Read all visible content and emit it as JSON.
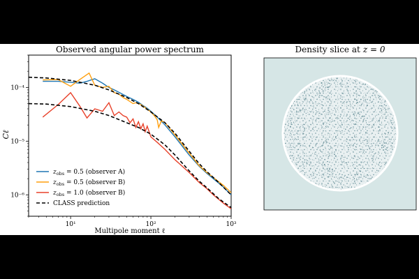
{
  "figure": {
    "left_title": "Observed angular power spectrum",
    "right_title": "Density slice at z = 0",
    "right_title_plain": "Density slice at",
    "right_title_math": "z = 0"
  },
  "chart_data": [
    {
      "type": "line",
      "title": "Observed angular power spectrum",
      "xlabel": "Multipole moment ℓ",
      "ylabel": "Cℓ",
      "xscale": "log",
      "yscale": "log",
      "xlim": [
        3,
        1000
      ],
      "ylim": [
        4e-07,
        0.0004
      ],
      "x_ticks": [
        10,
        100,
        1000
      ],
      "x_tick_labels": [
        "10¹",
        "10²",
        "10³"
      ],
      "y_ticks": [
        1e-06,
        1e-05,
        0.0001
      ],
      "y_tick_labels": [
        "10⁻⁶",
        "10⁻⁵",
        "10⁻⁴"
      ],
      "grid": false,
      "legend_position": "lower-left",
      "series": [
        {
          "name": "z_obs = 0.5 (observer A)",
          "color": "#1f77b4",
          "style": "solid",
          "points": [
            [
              4.5,
              0.00013
            ],
            [
              7,
              0.00013
            ],
            [
              10,
              0.000125
            ],
            [
              13,
              0.00012
            ],
            [
              16,
              0.00013
            ],
            [
              20,
              0.000145
            ],
            [
              25,
              0.00012
            ],
            [
              30,
              0.0001
            ],
            [
              35,
              9e-05
            ],
            [
              42,
              7.8e-05
            ],
            [
              50,
              6.8e-05
            ],
            [
              60,
              6e-05
            ],
            [
              70,
              5.3e-05
            ],
            [
              80,
              4.6e-05
            ],
            [
              90,
              4.1e-05
            ],
            [
              100,
              3.6e-05
            ],
            [
              120,
              2.8e-05
            ],
            [
              150,
              2e-05
            ],
            [
              200,
              1.2e-05
            ],
            [
              300,
              5.5e-06
            ],
            [
              400,
              3.4e-06
            ],
            [
              500,
              2.5e-06
            ],
            [
              600,
              2e-06
            ],
            [
              800,
              1.4e-06
            ],
            [
              1000,
              1e-06
            ]
          ]
        },
        {
          "name": "z_obs = 0.5 (observer B)",
          "color": "#ff9f0e",
          "style": "solid",
          "points": [
            [
              4.5,
              0.000138
            ],
            [
              7,
              0.00014
            ],
            [
              10,
              0.000105
            ],
            [
              13,
              0.00014
            ],
            [
              17,
              0.000185
            ],
            [
              20,
              0.00011
            ],
            [
              25,
              0.0001
            ],
            [
              30,
              0.000105
            ],
            [
              35,
              8e-05
            ],
            [
              40,
              7.5e-05
            ],
            [
              45,
              6.5e-05
            ],
            [
              50,
              6e-05
            ],
            [
              60,
              5e-05
            ],
            [
              65,
              5.2e-05
            ],
            [
              75,
              4.8e-05
            ],
            [
              85,
              4.2e-05
            ],
            [
              100,
              3.5e-05
            ],
            [
              110,
              3e-05
            ],
            [
              120,
              2.5e-05
            ],
            [
              125,
              1.8e-05
            ],
            [
              135,
              2.4e-05
            ],
            [
              150,
              2.2e-05
            ],
            [
              200,
              1.3e-05
            ],
            [
              300,
              6e-06
            ],
            [
              400,
              3.5e-06
            ],
            [
              500,
              2.6e-06
            ],
            [
              600,
              2.1e-06
            ],
            [
              800,
              1.5e-06
            ],
            [
              1000,
              1.1e-06
            ]
          ]
        },
        {
          "name": "z_obs = 1.0 (observer B)",
          "color": "#e8412a",
          "style": "solid",
          "points": [
            [
              4.5,
              2.8e-05
            ],
            [
              7,
              4.8e-05
            ],
            [
              10,
              8e-05
            ],
            [
              13,
              4.5e-05
            ],
            [
              16,
              2.7e-05
            ],
            [
              20,
              4e-05
            ],
            [
              25,
              3.6e-05
            ],
            [
              30,
              5.2e-05
            ],
            [
              35,
              3e-05
            ],
            [
              40,
              3.5e-05
            ],
            [
              45,
              3e-05
            ],
            [
              50,
              2.8e-05
            ],
            [
              55,
              2.2e-05
            ],
            [
              60,
              2.6e-05
            ],
            [
              65,
              1.8e-05
            ],
            [
              70,
              2.3e-05
            ],
            [
              75,
              1.7e-05
            ],
            [
              80,
              2.1e-05
            ],
            [
              85,
              1.5e-05
            ],
            [
              90,
              1.9e-05
            ],
            [
              100,
              1.2e-05
            ],
            [
              120,
              9.5e-06
            ],
            [
              150,
              7e-06
            ],
            [
              200,
              4.5e-06
            ],
            [
              300,
              2.6e-06
            ],
            [
              400,
              1.7e-06
            ],
            [
              500,
              1.3e-06
            ],
            [
              600,
              1e-06
            ],
            [
              800,
              7e-07
            ],
            [
              1000,
              5.5e-07
            ]
          ]
        },
        {
          "name": "CLASS prediction",
          "color": "#000000",
          "style": "dashed",
          "points": [
            [
              3,
              0.000155
            ],
            [
              5,
              0.00015
            ],
            [
              10,
              0.000135
            ],
            [
              20,
              0.00011
            ],
            [
              30,
              9e-05
            ],
            [
              50,
              6.5e-05
            ],
            [
              70,
              5e-05
            ],
            [
              100,
              3.5e-05
            ],
            [
              150,
              2.2e-05
            ],
            [
              200,
              1.4e-05
            ],
            [
              300,
              6.5e-06
            ],
            [
              400,
              3.8e-06
            ],
            [
              500,
              2.7e-06
            ],
            [
              700,
              1.7e-06
            ],
            [
              1000,
              1e-06
            ]
          ]
        },
        {
          "name": "",
          "color": "#000000",
          "style": "dashed",
          "points": [
            [
              3,
              5e-05
            ],
            [
              5,
              4.9e-05
            ],
            [
              10,
              4.4e-05
            ],
            [
              20,
              3.6e-05
            ],
            [
              30,
              3e-05
            ],
            [
              50,
              2.2e-05
            ],
            [
              70,
              1.8e-05
            ],
            [
              100,
              1.35e-05
            ],
            [
              150,
              8.5e-06
            ],
            [
              200,
              5.5e-06
            ],
            [
              300,
              2.8e-06
            ],
            [
              400,
              1.8e-06
            ],
            [
              500,
              1.35e-06
            ],
            [
              700,
              8.5e-07
            ],
            [
              1000,
              5.8e-07
            ]
          ]
        }
      ],
      "legend": [
        {
          "label_math": "z",
          "label_sub": "obs",
          "label_rest": " = 0.5 (observer A)",
          "color": "#1f77b4",
          "style": "solid"
        },
        {
          "label_math": "z",
          "label_sub": "obs",
          "label_rest": " = 0.5 (observer B)",
          "color": "#ff9f0e",
          "style": "solid"
        },
        {
          "label_math": "z",
          "label_sub": "obs",
          "label_rest": " = 1.0 (observer B)",
          "color": "#e8412a",
          "style": "solid"
        },
        {
          "label_math": "",
          "label_sub": "",
          "label_rest": "CLASS prediction",
          "color": "#000000",
          "style": "dashed"
        }
      ]
    },
    {
      "type": "heatmap",
      "title": "Density slice at z = 0",
      "background_color": "#d6e6e6",
      "disk_color": "#e9f0f1",
      "speckle_color": "#5f8a94",
      "ring_color": "#ffffff",
      "axes_visible": false
    }
  ]
}
